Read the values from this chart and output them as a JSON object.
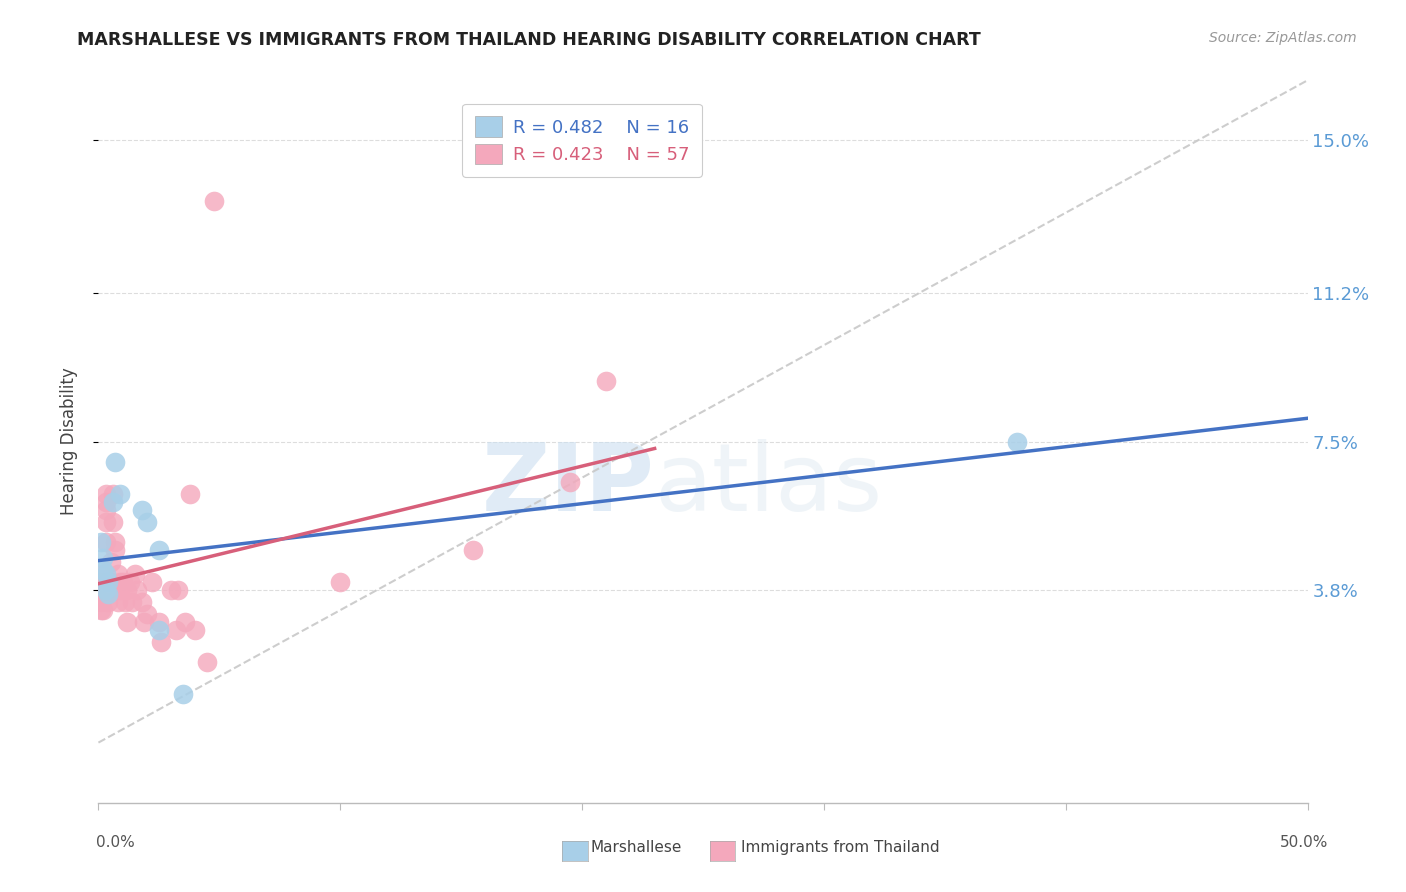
{
  "title": "MARSHALLESE VS IMMIGRANTS FROM THAILAND HEARING DISABILITY CORRELATION CHART",
  "source": "Source: ZipAtlas.com",
  "ylabel": "Hearing Disability",
  "ylabel_ticks": [
    "3.8%",
    "7.5%",
    "11.2%",
    "15.0%"
  ],
  "ylabel_tick_vals": [
    0.038,
    0.075,
    0.112,
    0.15
  ],
  "xlim": [
    0.0,
    0.5
  ],
  "ylim": [
    -0.015,
    0.165
  ],
  "legend_blue_r": "0.482",
  "legend_blue_n": "16",
  "legend_pink_r": "0.423",
  "legend_pink_n": "57",
  "color_blue": "#a8cfe8",
  "color_pink": "#f4a8bc",
  "color_blue_line": "#4472c4",
  "color_pink_line": "#d75f7a",
  "color_diag": "#c8c8c8",
  "watermark_zip": "ZIP",
  "watermark_atlas": "atlas",
  "blue_points_x": [
    0.001,
    0.002,
    0.002,
    0.003,
    0.003,
    0.004,
    0.004,
    0.006,
    0.007,
    0.009,
    0.018,
    0.02,
    0.025,
    0.025,
    0.035,
    0.38
  ],
  "blue_points_y": [
    0.05,
    0.046,
    0.043,
    0.038,
    0.042,
    0.04,
    0.037,
    0.06,
    0.07,
    0.062,
    0.058,
    0.055,
    0.048,
    0.028,
    0.012,
    0.075
  ],
  "pink_points_x": [
    0.001,
    0.001,
    0.001,
    0.001,
    0.001,
    0.002,
    0.002,
    0.002,
    0.002,
    0.002,
    0.002,
    0.003,
    0.003,
    0.003,
    0.003,
    0.003,
    0.004,
    0.004,
    0.004,
    0.005,
    0.005,
    0.005,
    0.006,
    0.006,
    0.007,
    0.007,
    0.008,
    0.008,
    0.008,
    0.009,
    0.009,
    0.01,
    0.011,
    0.012,
    0.012,
    0.013,
    0.014,
    0.015,
    0.016,
    0.018,
    0.019,
    0.02,
    0.022,
    0.025,
    0.026,
    0.03,
    0.032,
    0.033,
    0.036,
    0.038,
    0.04,
    0.045,
    0.048,
    0.1,
    0.155,
    0.195,
    0.21
  ],
  "pink_points_y": [
    0.038,
    0.04,
    0.036,
    0.033,
    0.035,
    0.038,
    0.042,
    0.038,
    0.04,
    0.036,
    0.033,
    0.05,
    0.058,
    0.055,
    0.062,
    0.06,
    0.038,
    0.04,
    0.035,
    0.045,
    0.04,
    0.038,
    0.062,
    0.055,
    0.05,
    0.048,
    0.038,
    0.042,
    0.035,
    0.038,
    0.04,
    0.04,
    0.035,
    0.038,
    0.03,
    0.04,
    0.035,
    0.042,
    0.038,
    0.035,
    0.03,
    0.032,
    0.04,
    0.03,
    0.025,
    0.038,
    0.028,
    0.038,
    0.03,
    0.062,
    0.028,
    0.02,
    0.135,
    0.04,
    0.048,
    0.065,
    0.09
  ]
}
